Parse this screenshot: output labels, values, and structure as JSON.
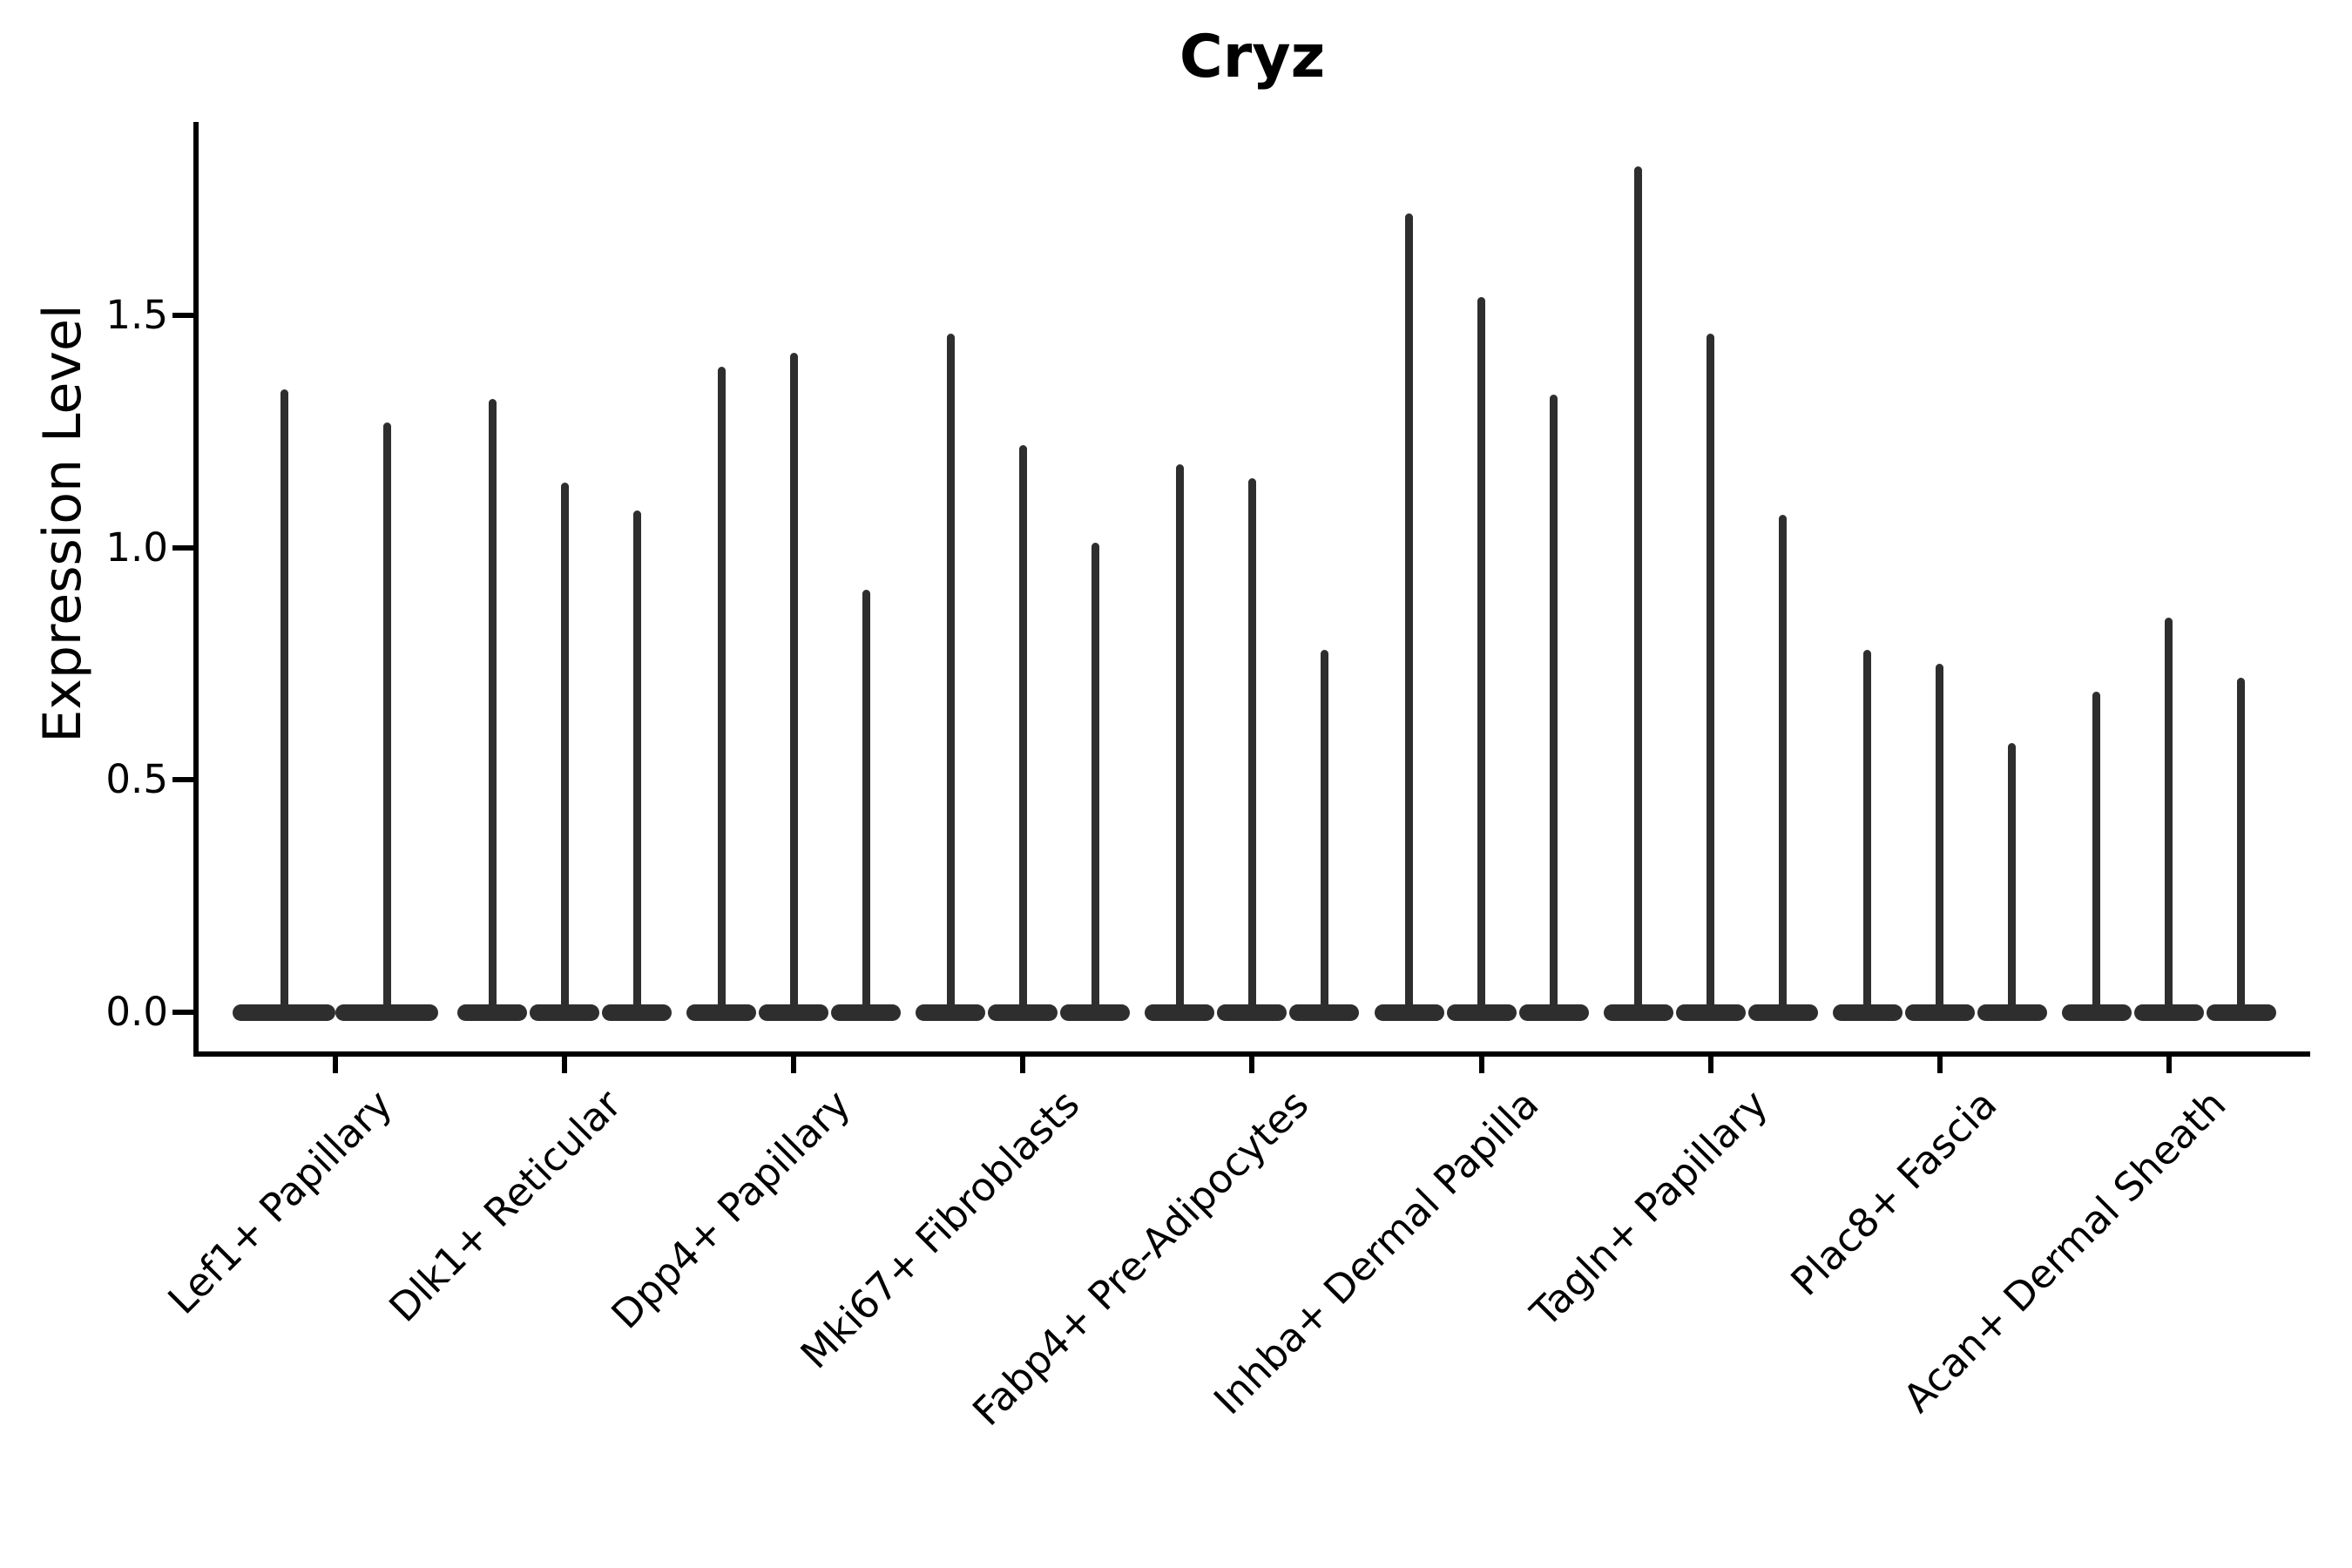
{
  "title": "Cryz",
  "y_axis": {
    "label": "Expression Level",
    "tick_labels": [
      "0.0",
      "0.5",
      "1.0",
      "1.5"
    ]
  },
  "chart_data": {
    "type": "violin",
    "title": "Cryz",
    "xlabel": "",
    "ylabel": "Expression Level",
    "yticks": [
      0.0,
      0.5,
      1.0,
      1.5
    ],
    "ylim": [
      -0.09,
      1.92
    ],
    "grid": false,
    "legend_position": "none",
    "baseline_value": 0.0,
    "violin_color": "#2e2e2e",
    "axis_color": "#000000",
    "categories": [
      "Lef1+ Papillary",
      "Dlk1+ Reticular",
      "Dpp4+ Papillary",
      "Mki67+ Fibroblasts",
      "Fabp4+ Pre-Adipocytes",
      "Inhba+ Dermal Papilla",
      "Tagln+ Papillary",
      "Plac8+ Fascia",
      "Acan+ Dermal Sheath"
    ],
    "groups": [
      {
        "category": "Lef1+ Papillary",
        "violin_max_values": [
          1.34,
          1.27
        ]
      },
      {
        "category": "Dlk1+ Reticular",
        "violin_max_values": [
          1.32,
          1.14,
          1.08
        ]
      },
      {
        "category": "Dpp4+ Papillary",
        "violin_max_values": [
          1.39,
          1.42,
          0.91
        ]
      },
      {
        "category": "Mki67+ Fibroblasts",
        "violin_max_values": [
          1.46,
          1.22,
          1.01
        ]
      },
      {
        "category": "Fabp4+ Pre-Adipocytes",
        "violin_max_values": [
          1.18,
          1.15,
          0.78
        ]
      },
      {
        "category": "Inhba+ Dermal Papilla",
        "violin_max_values": [
          1.72,
          1.54,
          1.33
        ]
      },
      {
        "category": "Tagln+ Papillary",
        "violin_max_values": [
          1.82,
          1.46,
          1.07
        ]
      },
      {
        "category": "Plac8+ Fascia",
        "violin_max_values": [
          0.78,
          0.75,
          0.58
        ]
      },
      {
        "category": "Acan+ Dermal Sheath",
        "violin_max_values": [
          0.69,
          0.85,
          0.72
        ]
      }
    ]
  }
}
